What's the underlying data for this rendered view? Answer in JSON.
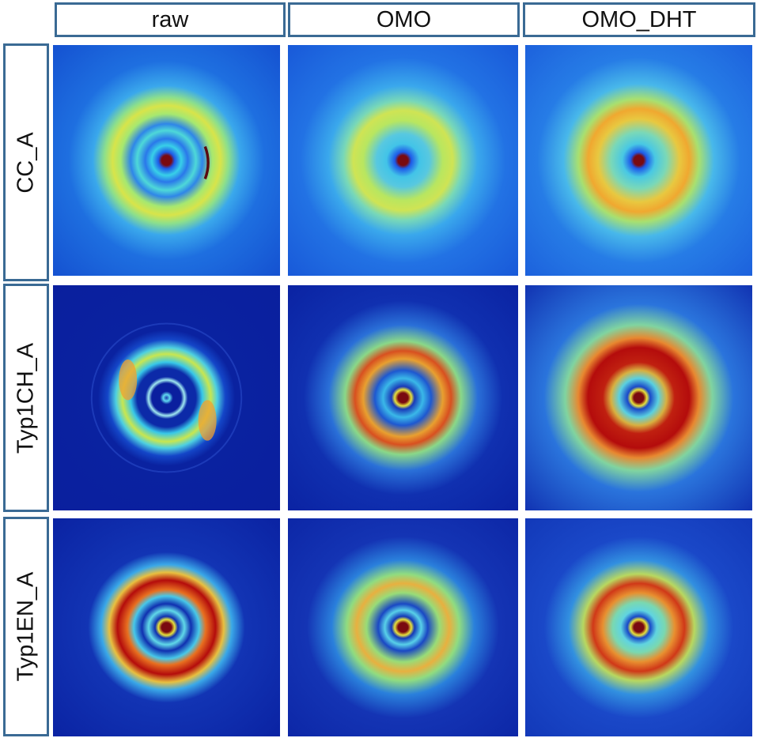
{
  "columns": [
    {
      "label": "raw"
    },
    {
      "label": "OMO"
    },
    {
      "label": "OMO_DHT"
    }
  ],
  "rows": [
    {
      "label": "CC_A"
    },
    {
      "label": "Typ1CH_A"
    },
    {
      "label": "Typ1EN_A"
    }
  ],
  "colors": {
    "header_border": "#3a6a94",
    "colormap_low": "#0a1f9e",
    "colormap_mid": "#36c8e8",
    "colormap_yellow": "#e8e23a",
    "colormap_high": "#b40c0c",
    "center_spot": "#7a0a10"
  }
}
